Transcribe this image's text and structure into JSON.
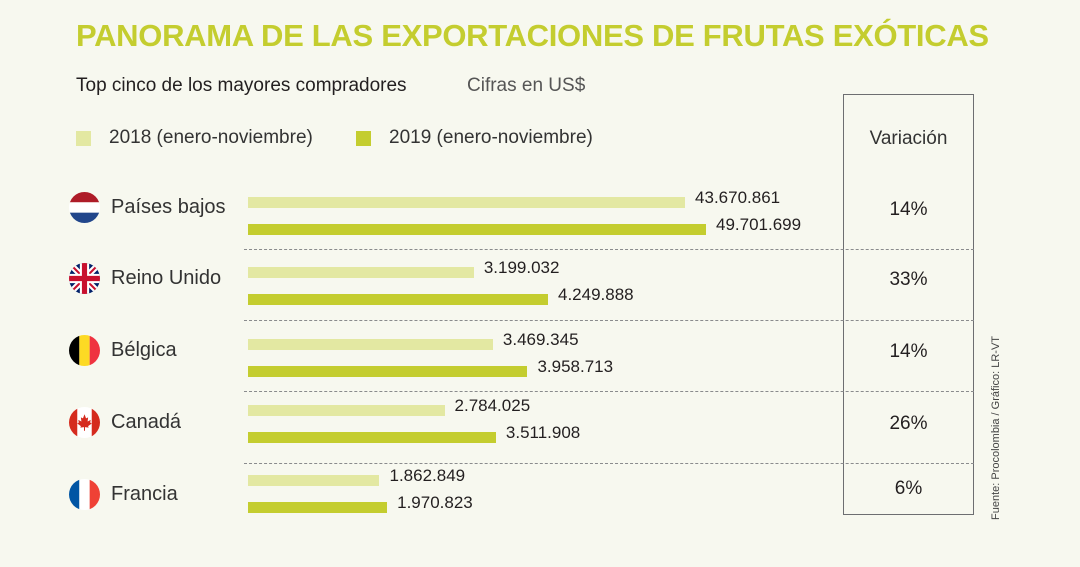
{
  "header": {
    "title": "PANORAMA DE LAS EXPORTACIONES DE FRUTAS EXÓTICAS",
    "subtitle": "Top cinco de los mayores compradores",
    "units": "Cifras en US$"
  },
  "source": "Fuente: Procolombia / Gráfico: LR-VT",
  "colors": {
    "series_2018": "#e3e8a2",
    "series_2019": "#c4cd2f",
    "title": "#c4cd2f"
  },
  "chart_data": {
    "type": "bar",
    "orientation": "horizontal",
    "title": "PANORAMA DE LAS EXPORTACIONES DE FRUTAS EXÓTICAS",
    "subtitle": "Top cinco de los mayores compradores",
    "units": "Cifras en US$",
    "categories": [
      "Países bajos",
      "Reino Unido",
      "Bélgica",
      "Canadá",
      "Francia"
    ],
    "category_icons": [
      "netherlands-flag-icon",
      "uk-flag-icon",
      "belgium-flag-icon",
      "canada-flag-icon",
      "france-flag-icon"
    ],
    "series": [
      {
        "name": "2018 (enero-noviembre)",
        "values": [
          43670861,
          3199032,
          3469345,
          2784025,
          1862849
        ],
        "labels": [
          "43.670.861",
          "3.199.032",
          "3.469.345",
          "2.784.025",
          "1.862.849"
        ]
      },
      {
        "name": "2019 (enero-noviembre)",
        "values": [
          49701699,
          4249888,
          3958713,
          3511908,
          1970823
        ],
        "labels": [
          "49.701.699",
          "4.249.888",
          "3.958.713",
          "3.511.908",
          "1.970.823"
        ]
      }
    ],
    "variation_header": "Variación",
    "variation": [
      "14%",
      "33%",
      "14%",
      "26%",
      "6%"
    ],
    "legend_position": "top",
    "grid": false
  }
}
